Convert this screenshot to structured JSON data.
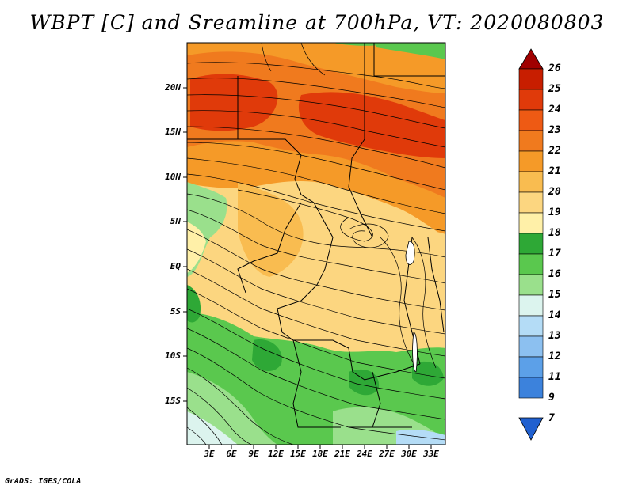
{
  "title": "WBPT [C] and Sreamline at 700hPa, VT: 2020080803",
  "footer": "GrADS: IGES/COLA",
  "lat_labels": [
    "20N",
    "15N",
    "10N",
    "5N",
    "EQ",
    "5S",
    "10S",
    "15S"
  ],
  "lon_labels": [
    "3E",
    "6E",
    "9E",
    "12E",
    "15E",
    "18E",
    "21E",
    "24E",
    "27E",
    "30E",
    "33E"
  ],
  "colorbar": {
    "levels": [
      "26",
      "25",
      "24",
      "23",
      "22",
      "21",
      "20",
      "19",
      "18",
      "17",
      "16",
      "15",
      "14",
      "13",
      "12",
      "11",
      "9",
      "7"
    ],
    "colors": [
      "#a00000",
      "#c81e00",
      "#e03a0a",
      "#ee5a14",
      "#f07a1e",
      "#f59a28",
      "#f9bc50",
      "#fcd680",
      "#fff0a8",
      "#2ea836",
      "#5ac84e",
      "#9ae08c",
      "#dcf4ee",
      "#b4dcf6",
      "#8cc0f0",
      "#5ca0e8",
      "#3c82dc",
      "#2060d0"
    ]
  }
}
